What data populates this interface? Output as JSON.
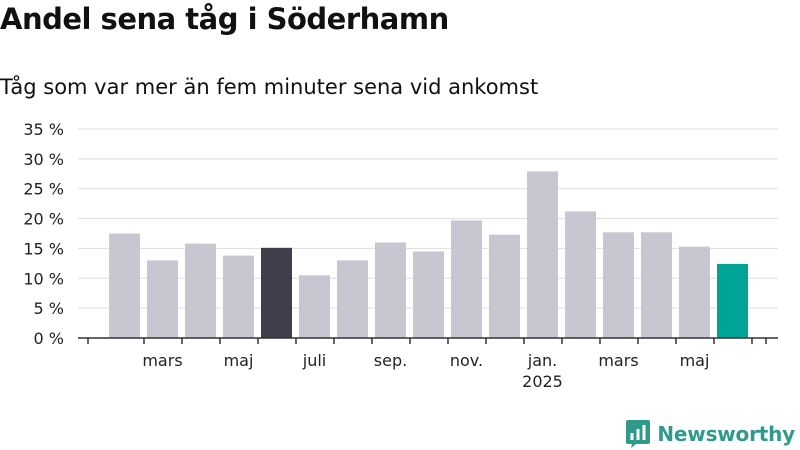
{
  "title": "Andel sena tåg i Söderhamn",
  "subtitle": "Tåg som var mer än fem minuter sena vid ankomst",
  "brand": {
    "name": "Newsworthy",
    "color": "#2f9a8a",
    "icon": "newsworthy-logo-icon"
  },
  "colors": {
    "bar": "#c8c7d1",
    "highlight_dark": "#3f3e4a",
    "highlight_teal": "#00a398",
    "grid": "#dddddd",
    "axis": "#333333"
  },
  "chart_data": {
    "type": "bar",
    "title": "Andel sena tåg i Söderhamn",
    "subtitle": "Tåg som var mer än fem minuter sena vid ankomst",
    "xlabel": "",
    "ylabel": "",
    "ylim": [
      0,
      35
    ],
    "yticks": [
      0,
      5,
      10,
      15,
      20,
      25,
      30,
      35
    ],
    "ytick_labels": [
      "0 %",
      "5 %",
      "10 %",
      "15 %",
      "20 %",
      "25 %",
      "30 %",
      "35 %"
    ],
    "grid": true,
    "x": [
      "2024-02",
      "2024-03",
      "2024-04",
      "2024-05",
      "2024-06",
      "2024-07",
      "2024-08",
      "2024-09",
      "2024-10",
      "2024-11",
      "2024-12",
      "2025-01",
      "2025-02",
      "2025-03",
      "2025-04",
      "2025-05",
      "2025-06"
    ],
    "values": [
      17.5,
      13.0,
      15.8,
      13.8,
      15.1,
      10.5,
      13.0,
      16.0,
      14.5,
      19.7,
      17.3,
      27.9,
      21.2,
      17.7,
      17.7,
      15.3,
      12.4
    ],
    "highlight": {
      "2024-06": "dark",
      "2025-06": "teal"
    },
    "xtick_labels": [
      {
        "month": "2024-03",
        "label": "mars"
      },
      {
        "month": "2024-05",
        "label": "maj"
      },
      {
        "month": "2024-07",
        "label": "juli"
      },
      {
        "month": "2024-09",
        "label": "sep."
      },
      {
        "month": "2024-11",
        "label": "nov."
      },
      {
        "month": "2025-01",
        "label": "jan.",
        "sub": "2025"
      },
      {
        "month": "2025-03",
        "label": "mars"
      },
      {
        "month": "2025-05",
        "label": "maj"
      }
    ]
  }
}
